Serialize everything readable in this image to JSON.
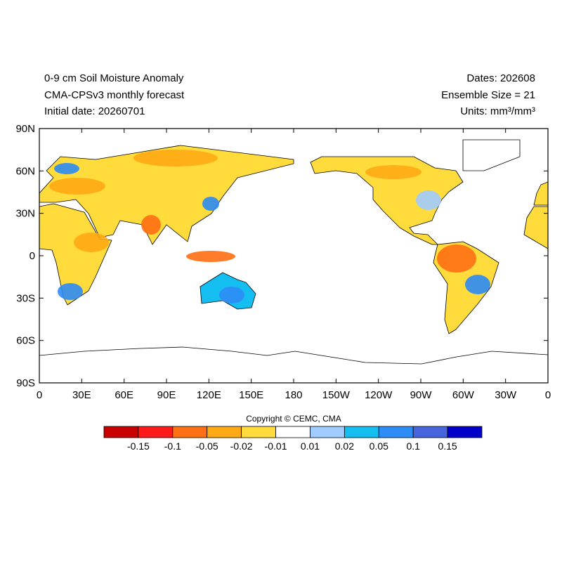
{
  "header": {
    "left": [
      "0-9 cm Soil Moisture Anomaly",
      "CMA-CPSv3 monthly forecast",
      "Initial date: 20260701"
    ],
    "right": [
      "Dates: 202608",
      "Ensemble Size = 21",
      "Units: mm³/mm³"
    ]
  },
  "map": {
    "lat_labels": [
      "90N",
      "60N",
      "30N",
      "0",
      "30S",
      "60S",
      "90S"
    ],
    "lon_labels": [
      "0",
      "30E",
      "60E",
      "90E",
      "120E",
      "150E",
      "180",
      "150W",
      "120W",
      "90W",
      "60W",
      "30W",
      "0"
    ]
  },
  "colorbar": {
    "copyright": "Copyright © CEMC, CMA",
    "colors": [
      "#c80000",
      "#ff1a1a",
      "#ff7014",
      "#ffaa14",
      "#ffdc3c",
      "#ffffff",
      "#a0ccff",
      "#14bef0",
      "#2d8cf5",
      "#4664dc",
      "#0000c8"
    ],
    "levels": [
      -0.15,
      -0.1,
      -0.05,
      -0.02,
      -0.01,
      0.01,
      0.02,
      0.05,
      0.1,
      0.15
    ]
  }
}
